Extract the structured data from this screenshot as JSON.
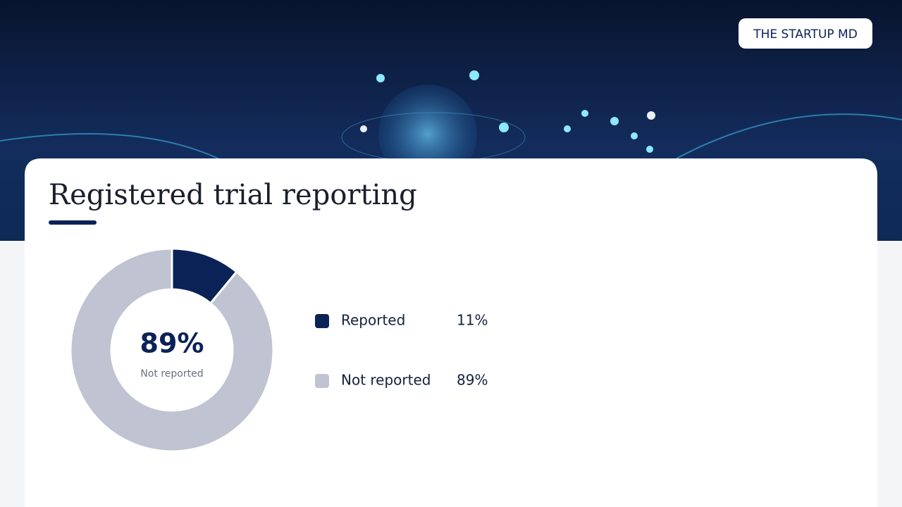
{
  "logo": "THE STARTUP MD",
  "chart_data": {
    "type": "pie",
    "title": "Registered trial reporting",
    "categories": [
      "Reported",
      "Not reported"
    ],
    "values": [
      11,
      89
    ],
    "value_labels": [
      "11%",
      "89%"
    ],
    "colors": [
      "#0b2257",
      "#bfc3d2"
    ],
    "donut": true,
    "center_label": "89%",
    "center_caption": "Not reported"
  }
}
